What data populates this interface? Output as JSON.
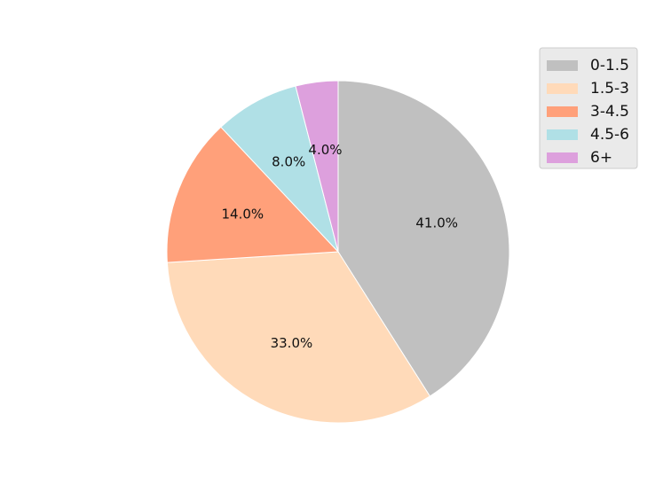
{
  "chart_data": {
    "type": "pie",
    "categories": [
      "0-1.5",
      "1.5-3",
      "3-4.5",
      "4.5-6",
      "6+"
    ],
    "values": [
      41.0,
      33.0,
      14.0,
      8.0,
      4.0
    ],
    "labels": [
      "41.0%",
      "33.0%",
      "14.0%",
      "8.0%",
      "4.0%"
    ],
    "colors": [
      "#c0c0c0",
      "#ffdab9",
      "#ffa07a",
      "#b0e0e6",
      "#dda0dd"
    ],
    "start_angle_deg": 90,
    "direction": "clockwise",
    "legend": {
      "entries": [
        "0-1.5",
        "1.5-3",
        "3-4.5",
        "4.5-6",
        "6+"
      ],
      "placement": "top-right"
    }
  }
}
